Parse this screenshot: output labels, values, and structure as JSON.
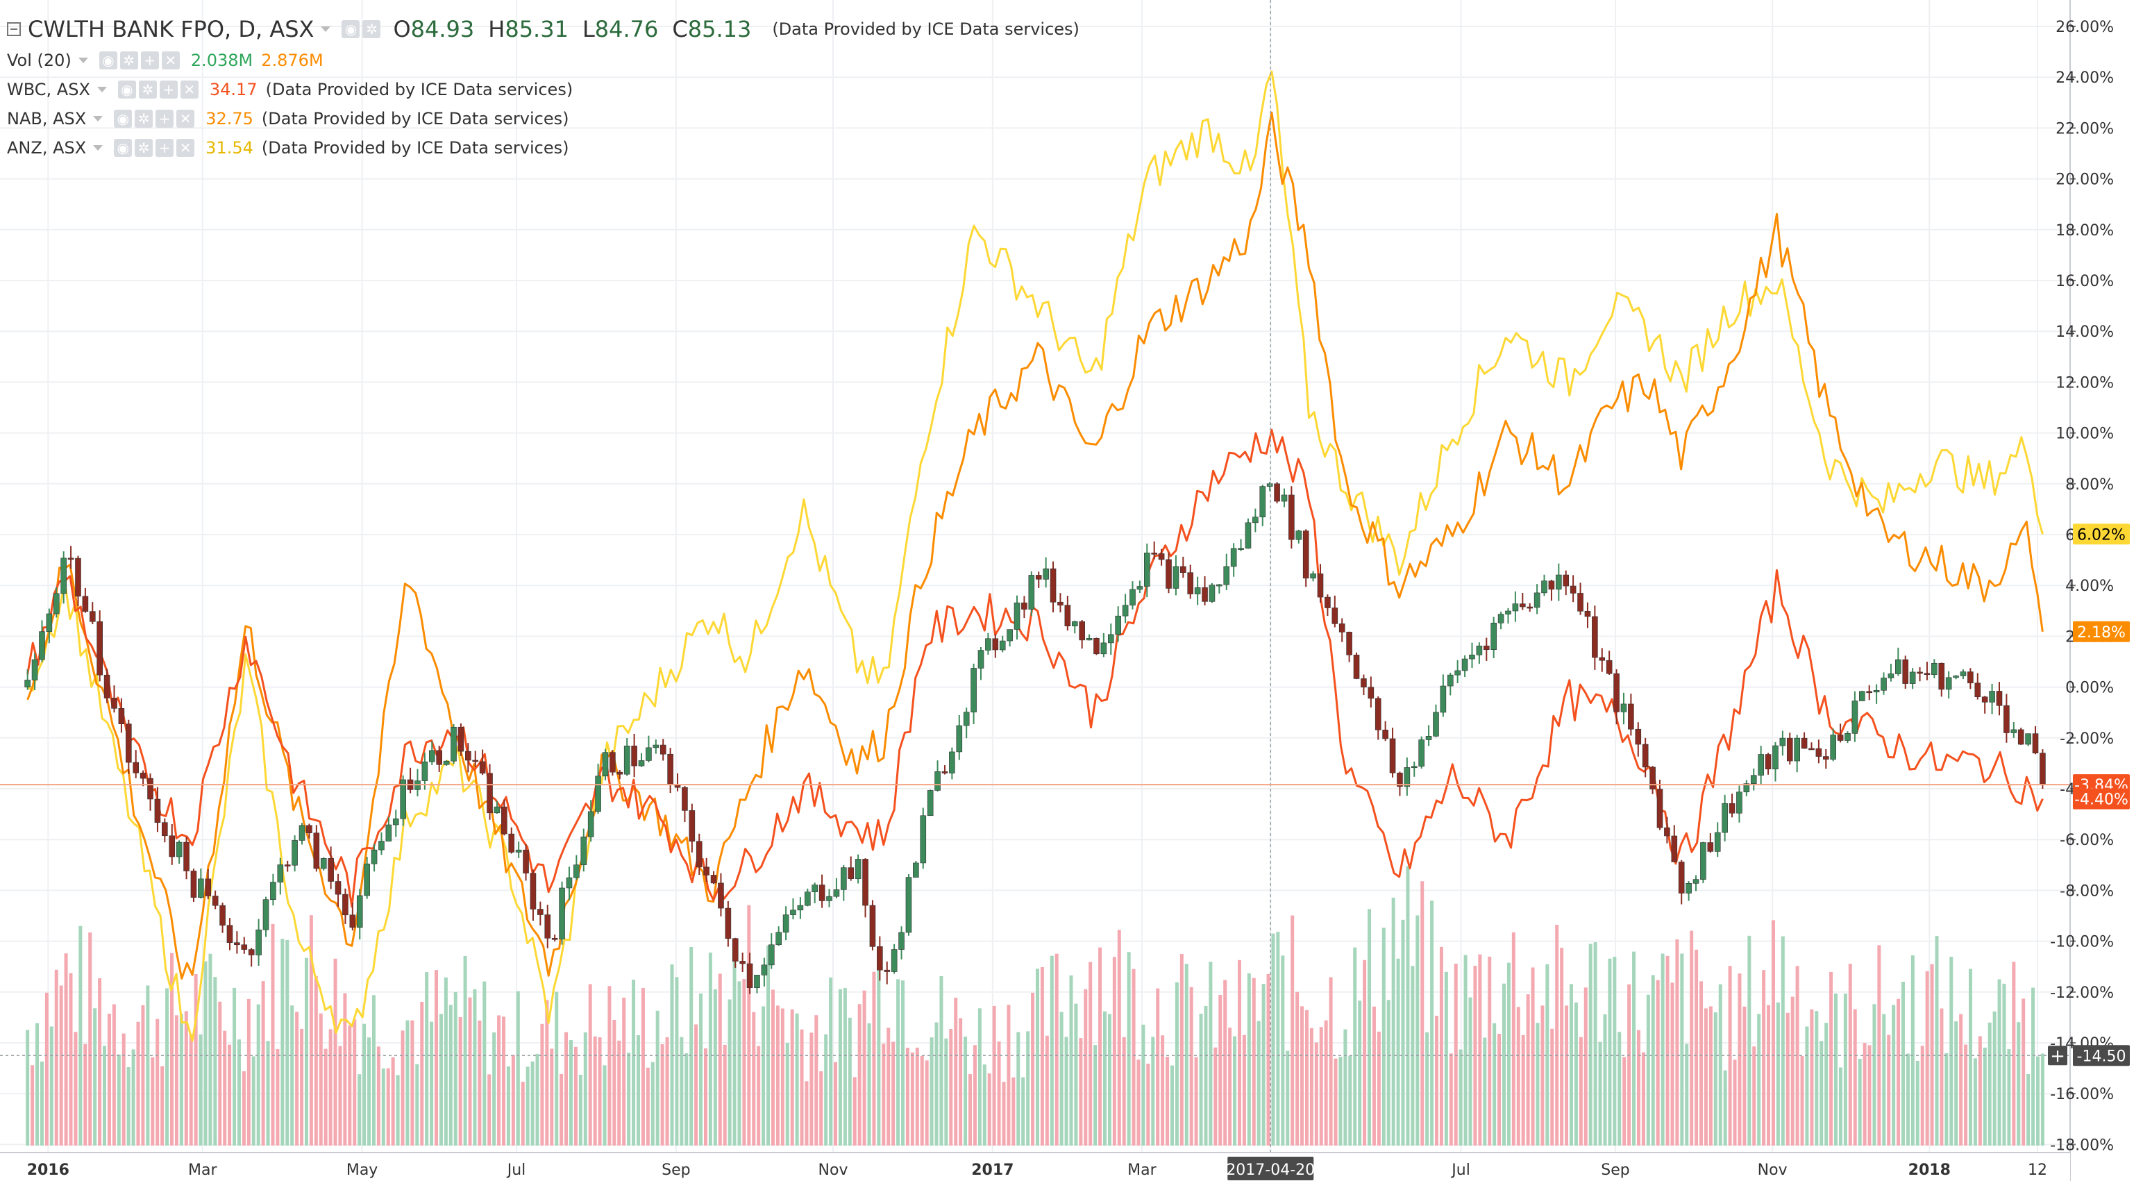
{
  "header": {
    "symbol_label": "CWLTH BANK FPO, D, ASX",
    "open_key": "O",
    "open": "84.93",
    "high_key": "H",
    "high": "85.31",
    "low_key": "L",
    "low": "84.76",
    "close_key": "C",
    "close": "85.13",
    "data_source": "(Data Provided by ICE Data services)"
  },
  "legend": {
    "vol_label": "Vol (20)",
    "vol_value": "2.038M",
    "vol_ma_value": "2.876M",
    "compare": [
      {
        "label": "WBC, ASX",
        "value": "34.17",
        "source": "(Data Provided by ICE Data services)",
        "color": "#f4511e"
      },
      {
        "label": "NAB, ASX",
        "value": "32.75",
        "source": "(Data Provided by ICE Data services)",
        "color": "#fb8c00"
      },
      {
        "label": "ANZ, ASX",
        "value": "31.54",
        "source": "(Data Provided by ICE Data services)",
        "color": "#fdd835"
      }
    ]
  },
  "chart_data": {
    "type": "line",
    "title": "CWLTH BANK FPO, D, ASX",
    "y_unit": "%",
    "ylim": [
      -18.5,
      26.8
    ],
    "y_ticks": [
      "26.00%",
      "24.00%",
      "22.00%",
      "20.00%",
      "18.00%",
      "16.00%",
      "14.00%",
      "12.00%",
      "10.00%",
      "8.00%",
      "6.00%",
      "4.00%",
      "2.00%",
      "0.00%",
      "-2.00%",
      "-4.00%",
      "-6.00%",
      "-8.00%",
      "-10.00%",
      "-12.00%",
      "-14.00%",
      "-16.00%",
      "-18.00%"
    ],
    "x_ticks": [
      "2016",
      "Mar",
      "May",
      "Jul",
      "Sep",
      "Nov",
      "2017",
      "Mar",
      "2017-04-20",
      "Jul",
      "Sep",
      "Nov",
      "2018",
      "12"
    ],
    "x_tick_dates": [
      "2016-01-01",
      "2016-03-01",
      "2016-05-02",
      "2016-07-01",
      "2016-09-01",
      "2016-11-01",
      "2017-01-02",
      "2017-03-01",
      "2017-04-20",
      "2017-07-03",
      "2017-09-01",
      "2017-11-01",
      "2018-01-01",
      "2018-02-12"
    ],
    "crosshair_date": "2017-04-20",
    "grid": true,
    "series": [
      {
        "name": "CWLTH BANK FPO",
        "style": "candles",
        "up_color": "#3d8b5b",
        "down_color": "#8b2c22",
        "x": [
          "2015-12-24",
          "2016-01-08",
          "2016-02-02",
          "2016-02-25",
          "2016-03-18",
          "2016-04-07",
          "2016-04-28",
          "2016-05-20",
          "2016-06-08",
          "2016-06-28",
          "2016-07-14",
          "2016-08-04",
          "2016-08-25",
          "2016-09-15",
          "2016-09-29",
          "2016-10-20",
          "2016-11-10",
          "2016-11-21",
          "2016-12-07",
          "2016-12-26",
          "2017-01-20",
          "2017-02-10",
          "2017-03-03",
          "2017-03-27",
          "2017-04-13",
          "2017-04-20",
          "2017-05-05",
          "2017-05-19",
          "2017-06-09",
          "2017-06-30",
          "2017-07-21",
          "2017-08-14",
          "2017-08-30",
          "2017-09-14",
          "2017-09-27",
          "2017-10-16",
          "2017-11-03",
          "2017-11-22",
          "2017-12-13",
          "2018-01-03",
          "2018-01-22",
          "2018-02-09",
          "2018-02-14"
        ],
        "values": [
          0.0,
          5.5,
          -3.0,
          -7.5,
          -10.5,
          -5.5,
          -9.0,
          -3.5,
          -2.0,
          -6.0,
          -10.0,
          -3.0,
          -2.5,
          -8.0,
          -11.5,
          -8.5,
          -7.0,
          -12.0,
          -5.0,
          0.5,
          4.5,
          1.5,
          5.0,
          3.5,
          6.5,
          8.5,
          4.5,
          2.0,
          -4.0,
          0.5,
          3.0,
          4.5,
          0.0,
          -3.5,
          -8.0,
          -4.5,
          -2.5,
          -2.5,
          0.5,
          0.5,
          0.0,
          -2.5,
          -3.84
        ]
      },
      {
        "name": "WBC, ASX",
        "color": "#f4511e",
        "x": [
          "2015-12-24",
          "2016-01-08",
          "2016-02-02",
          "2016-02-25",
          "2016-03-18",
          "2016-04-07",
          "2016-04-28",
          "2016-05-20",
          "2016-06-08",
          "2016-06-28",
          "2016-07-14",
          "2016-08-04",
          "2016-08-25",
          "2016-09-15",
          "2016-09-29",
          "2016-10-20",
          "2016-11-10",
          "2016-11-21",
          "2016-12-07",
          "2016-12-26",
          "2017-01-20",
          "2017-02-10",
          "2017-03-03",
          "2017-03-27",
          "2017-04-13",
          "2017-04-20",
          "2017-05-05",
          "2017-05-19",
          "2017-06-09",
          "2017-06-30",
          "2017-07-21",
          "2017-08-14",
          "2017-08-30",
          "2017-09-14",
          "2017-09-27",
          "2017-10-16",
          "2017-11-03",
          "2017-11-22",
          "2017-12-13",
          "2018-01-03",
          "2018-01-22",
          "2018-02-09",
          "2018-02-14"
        ],
        "values": [
          0.5,
          4.5,
          -2.5,
          -6.0,
          2.0,
          -4.0,
          -8.0,
          -2.5,
          -1.5,
          -5.0,
          -8.0,
          -3.5,
          -5.0,
          -8.0,
          -7.0,
          -4.0,
          -5.5,
          -6.0,
          2.0,
          3.0,
          2.5,
          -1.0,
          4.0,
          8.0,
          9.5,
          10.0,
          7.5,
          -3.0,
          -7.5,
          -3.5,
          -6.0,
          -0.5,
          -1.0,
          -3.0,
          -7.0,
          -1.5,
          4.0,
          -1.0,
          -2.0,
          -3.0,
          -3.0,
          -4.0,
          -4.4
        ]
      },
      {
        "name": "NAB, ASX",
        "color": "#fb8c00",
        "x": [
          "2015-12-24",
          "2016-01-08",
          "2016-02-02",
          "2016-02-25",
          "2016-03-18",
          "2016-04-07",
          "2016-04-28",
          "2016-05-20",
          "2016-06-08",
          "2016-06-28",
          "2016-07-14",
          "2016-08-04",
          "2016-08-25",
          "2016-09-15",
          "2016-09-29",
          "2016-10-20",
          "2016-11-10",
          "2016-11-21",
          "2016-12-07",
          "2016-12-26",
          "2017-01-20",
          "2017-02-10",
          "2017-03-03",
          "2017-03-27",
          "2017-04-13",
          "2017-04-20",
          "2017-05-05",
          "2017-05-19",
          "2017-06-09",
          "2017-06-30",
          "2017-07-21",
          "2017-08-14",
          "2017-08-30",
          "2017-09-14",
          "2017-09-27",
          "2017-10-16",
          "2017-11-03",
          "2017-11-22",
          "2017-12-13",
          "2018-01-03",
          "2018-01-22",
          "2018-02-09",
          "2018-02-14"
        ],
        "values": [
          -0.5,
          5.0,
          -4.0,
          -12.0,
          2.5,
          -5.0,
          -10.0,
          4.5,
          -2.0,
          -7.0,
          -11.0,
          -3.0,
          -5.0,
          -8.0,
          -4.0,
          1.0,
          -3.0,
          -2.0,
          5.0,
          10.0,
          13.0,
          9.0,
          14.0,
          16.0,
          18.0,
          22.0,
          17.0,
          8.0,
          4.0,
          6.0,
          10.0,
          8.0,
          11.0,
          12.0,
          9.0,
          13.0,
          18.0,
          11.0,
          6.0,
          5.0,
          4.0,
          6.0,
          2.18
        ]
      },
      {
        "name": "ANZ, ASX",
        "color": "#fdd835",
        "x": [
          "2015-12-24",
          "2016-01-08",
          "2016-02-02",
          "2016-02-25",
          "2016-03-18",
          "2016-04-07",
          "2016-04-28",
          "2016-05-20",
          "2016-06-08",
          "2016-06-28",
          "2016-07-14",
          "2016-08-04",
          "2016-08-25",
          "2016-09-15",
          "2016-09-29",
          "2016-10-20",
          "2016-11-10",
          "2016-11-21",
          "2016-12-07",
          "2016-12-26",
          "2017-01-20",
          "2017-02-10",
          "2017-03-03",
          "2017-03-27",
          "2017-04-13",
          "2017-04-20",
          "2017-05-05",
          "2017-05-19",
          "2017-06-09",
          "2017-06-30",
          "2017-07-21",
          "2017-08-14",
          "2017-08-30",
          "2017-09-14",
          "2017-09-27",
          "2017-10-16",
          "2017-11-03",
          "2017-11-22",
          "2017-12-13",
          "2018-01-03",
          "2018-01-22",
          "2018-02-09",
          "2018-02-14"
        ],
        "values": [
          0.0,
          4.0,
          -5.0,
          -14.0,
          1.0,
          -10.0,
          -14.0,
          -5.0,
          -3.0,
          -7.0,
          -13.0,
          -3.0,
          0.0,
          3.0,
          1.0,
          7.0,
          1.0,
          0.0,
          10.0,
          18.0,
          15.0,
          12.0,
          20.0,
          22.0,
          20.0,
          24.5,
          11.0,
          8.0,
          5.0,
          10.0,
          14.0,
          12.0,
          15.0,
          14.0,
          12.0,
          15.0,
          16.0,
          9.0,
          7.0,
          9.0,
          8.0,
          9.5,
          6.02
        ]
      },
      {
        "name": "Vol (20)",
        "style": "volume-bars",
        "unit": "shares",
        "up_color": "#a5d6bc",
        "down_color": "#f4a9b1",
        "x": [
          "2015-12-24",
          "2016-01-08",
          "2016-02-02",
          "2016-02-25",
          "2016-03-18",
          "2016-04-07",
          "2016-04-28",
          "2016-05-20",
          "2016-06-08",
          "2016-06-28",
          "2016-07-14",
          "2016-08-04",
          "2016-08-25",
          "2016-09-15",
          "2016-09-29",
          "2016-10-20",
          "2016-11-10",
          "2016-11-21",
          "2016-12-07",
          "2016-12-26",
          "2017-01-20",
          "2017-02-10",
          "2017-03-03",
          "2017-03-27",
          "2017-04-13",
          "2017-04-20",
          "2017-05-05",
          "2017-05-19",
          "2017-06-09",
          "2017-06-30",
          "2017-07-21",
          "2017-08-14",
          "2017-08-30",
          "2017-09-14",
          "2017-09-27",
          "2017-10-16",
          "2017-11-03",
          "2017-11-22",
          "2017-12-13",
          "2018-01-03",
          "2018-01-22",
          "2018-02-09",
          "2018-02-14"
        ],
        "values": [
          2.8,
          4.0,
          3.0,
          3.4,
          3.2,
          4.6,
          3.1,
          2.9,
          3.3,
          2.6,
          2.7,
          2.9,
          3.0,
          3.6,
          4.3,
          2.8,
          2.9,
          4.4,
          3.2,
          2.6,
          3.0,
          4.4,
          3.5,
          3.1,
          3.2,
          4.0,
          3.7,
          3.3,
          5.2,
          3.4,
          4.2,
          3.6,
          4.0,
          3.2,
          3.9,
          3.0,
          4.5,
          3.0,
          3.4,
          3.6,
          3.0,
          3.1,
          2.9
        ]
      }
    ],
    "price_labels": [
      {
        "text": "6.02%",
        "bg": "#fdd835",
        "fg": "#000000",
        "value": 6.02
      },
      {
        "text": "2.18%",
        "bg": "#fb8c00",
        "fg": "#ffffff",
        "value": 2.18
      },
      {
        "text": "-3.84%",
        "bg": "#f4511e",
        "fg": "#ffffff",
        "value": -3.84
      },
      {
        "text": "-4.40%",
        "bg": "#f4511e",
        "fg": "#ffffff",
        "value": -4.4
      },
      {
        "text": "-14.50",
        "bg": "#4a4a4a",
        "fg": "#ffffff",
        "value": -14.5
      }
    ]
  }
}
